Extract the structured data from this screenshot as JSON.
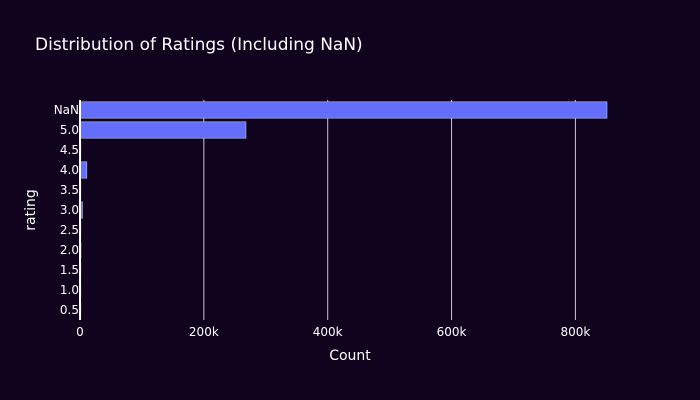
{
  "chart_data": {
    "type": "bar",
    "orientation": "horizontal",
    "title": "Distribution of Ratings (Including NaN)",
    "xlabel": "Count",
    "ylabel": "rating",
    "categories": [
      "NaN",
      "5.0",
      "4.5",
      "4.0",
      "3.5",
      "3.0",
      "2.5",
      "2.0",
      "1.5",
      "1.0",
      "0.5"
    ],
    "values": [
      851000,
      268000,
      1000,
      11000,
      1000,
      4000,
      1000,
      1500,
      500,
      1000,
      500
    ],
    "x_ticks": [
      0,
      200000,
      400000,
      600000,
      800000
    ],
    "x_tick_labels": [
      "0",
      "200k",
      "400k",
      "600k",
      "800k"
    ],
    "xlim": [
      0,
      872000
    ],
    "grid": true,
    "colors": {
      "background": "#10031e",
      "bar": "#636efa",
      "grid": "#c8c8d2",
      "text": "#ffffff"
    }
  }
}
